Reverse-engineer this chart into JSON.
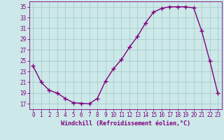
{
  "x": [
    0,
    1,
    2,
    3,
    4,
    5,
    6,
    7,
    8,
    9,
    10,
    11,
    12,
    13,
    14,
    15,
    16,
    17,
    18,
    19,
    20,
    21,
    22,
    23
  ],
  "y": [
    24,
    21,
    19.5,
    19,
    18,
    17.2,
    17.1,
    17,
    18,
    21.2,
    23.5,
    25.2,
    27.5,
    29.5,
    32,
    34,
    34.7,
    35,
    35,
    35,
    34.8,
    30.5,
    25,
    19
  ],
  "line_color": "#800080",
  "marker": "+",
  "marker_color": "#800080",
  "bg_color": "#cce8e8",
  "grid_color": "#aacccc",
  "xlabel": "Windchill (Refroidissement éolien,°C)",
  "xlabel_fontsize": 6.0,
  "tick_fontsize": 5.5,
  "ylim": [
    16,
    36
  ],
  "yticks": [
    17,
    19,
    21,
    23,
    25,
    27,
    29,
    31,
    33,
    35
  ],
  "xlim": [
    -0.5,
    23.5
  ],
  "xticks": [
    0,
    1,
    2,
    3,
    4,
    5,
    6,
    7,
    8,
    9,
    10,
    11,
    12,
    13,
    14,
    15,
    16,
    17,
    18,
    19,
    20,
    21,
    22,
    23
  ],
  "line_width": 1.0,
  "marker_size": 4
}
